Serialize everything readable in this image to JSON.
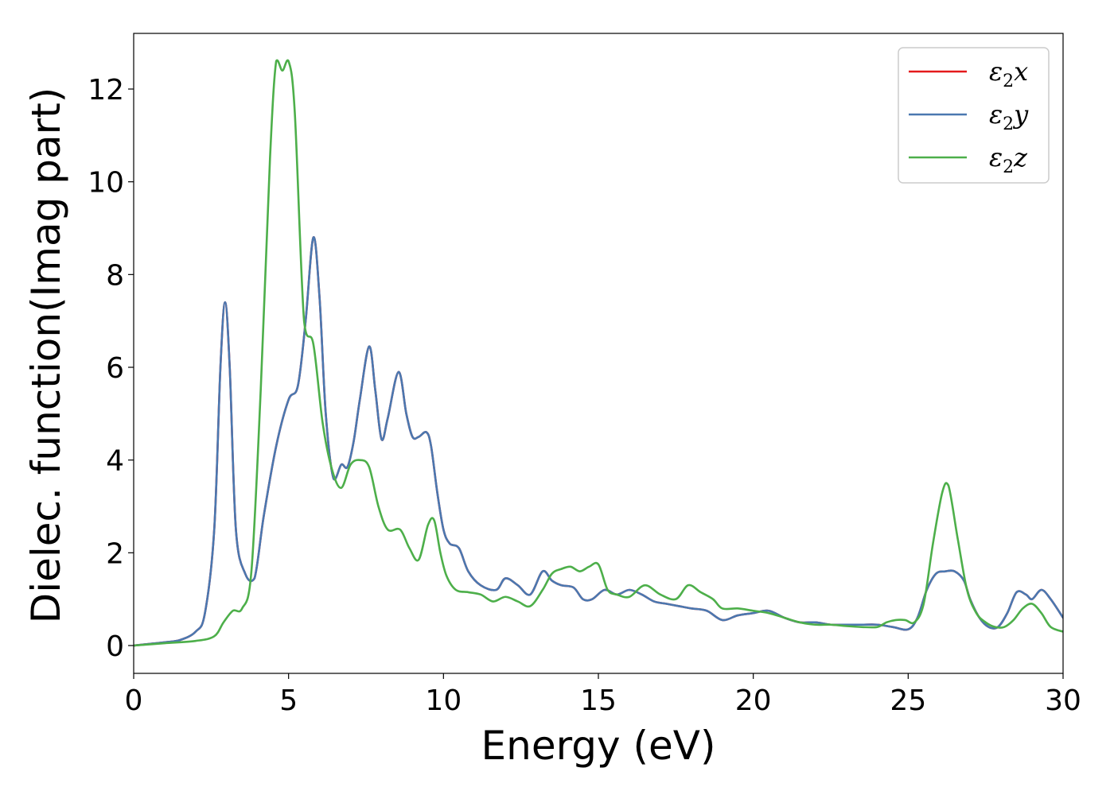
{
  "chart_data": {
    "type": "line",
    "xlabel": "Energy (eV)",
    "ylabel": "Dielec. function(Imag part)",
    "xlim": [
      0,
      30
    ],
    "ylim": [
      -0.6,
      13.2
    ],
    "xticks": [
      0,
      5,
      10,
      15,
      20,
      25,
      30
    ],
    "yticks": [
      0,
      2,
      4,
      6,
      8,
      10,
      12
    ],
    "grid": false,
    "legend": {
      "placement": "top-right"
    },
    "series": [
      {
        "name": "ε₂x",
        "legend_main": "ε",
        "legend_sub": "2",
        "legend_var": "x",
        "color": "#e41a1c",
        "x": [
          0,
          1,
          1.5,
          2,
          2.3,
          2.6,
          2.8,
          2.95,
          3.1,
          3.3,
          3.6,
          3.9,
          4.2,
          4.6,
          5.0,
          5.3,
          5.55,
          5.8,
          6.0,
          6.2,
          6.45,
          6.7,
          6.9,
          7.1,
          7.3,
          7.6,
          7.8,
          8.0,
          8.2,
          8.55,
          8.8,
          9.0,
          9.2,
          9.45,
          9.6,
          9.8,
          10.0,
          10.2,
          10.5,
          10.8,
          11.2,
          11.7,
          12.0,
          12.4,
          12.8,
          13.2,
          13.5,
          13.8,
          14.2,
          14.5,
          14.8,
          15.2,
          15.6,
          16.0,
          16.4,
          16.8,
          17.2,
          17.6,
          18.0,
          18.5,
          19.0,
          19.5,
          20.0,
          20.5,
          21.0,
          21.5,
          22.0,
          22.5,
          23.0,
          23.5,
          24.0,
          24.5,
          25.0,
          25.3,
          25.6,
          25.9,
          26.2,
          26.5,
          26.8,
          27.0,
          27.3,
          27.6,
          27.9,
          28.2,
          28.5,
          28.8,
          29.0,
          29.3,
          29.6,
          30.0
        ],
        "values": [
          0,
          0.07,
          0.12,
          0.3,
          0.7,
          2.5,
          6.0,
          7.4,
          6.0,
          2.5,
          1.55,
          1.45,
          2.8,
          4.3,
          5.3,
          5.6,
          7.0,
          8.8,
          7.5,
          5.0,
          3.6,
          3.9,
          3.85,
          4.4,
          5.3,
          6.45,
          5.5,
          4.45,
          4.9,
          5.9,
          5.0,
          4.5,
          4.5,
          4.6,
          4.3,
          3.3,
          2.5,
          2.2,
          2.1,
          1.6,
          1.3,
          1.2,
          1.45,
          1.3,
          1.1,
          1.6,
          1.4,
          1.3,
          1.25,
          1.0,
          1.0,
          1.2,
          1.1,
          1.2,
          1.1,
          0.95,
          0.9,
          0.85,
          0.8,
          0.75,
          0.55,
          0.65,
          0.7,
          0.75,
          0.6,
          0.5,
          0.5,
          0.45,
          0.45,
          0.45,
          0.45,
          0.4,
          0.35,
          0.6,
          1.2,
          1.55,
          1.6,
          1.6,
          1.4,
          1.0,
          0.6,
          0.4,
          0.4,
          0.7,
          1.15,
          1.1,
          1.0,
          1.2,
          1.0,
          0.6
        ]
      },
      {
        "name": "ε₂y",
        "legend_main": "ε",
        "legend_sub": "2",
        "legend_var": "y",
        "color": "#4a78b0",
        "x": [
          0,
          1,
          1.5,
          2,
          2.3,
          2.6,
          2.8,
          2.95,
          3.1,
          3.3,
          3.6,
          3.9,
          4.2,
          4.6,
          5.0,
          5.3,
          5.55,
          5.8,
          6.0,
          6.2,
          6.45,
          6.7,
          6.9,
          7.1,
          7.3,
          7.6,
          7.8,
          8.0,
          8.2,
          8.55,
          8.8,
          9.0,
          9.2,
          9.45,
          9.6,
          9.8,
          10.0,
          10.2,
          10.5,
          10.8,
          11.2,
          11.7,
          12.0,
          12.4,
          12.8,
          13.2,
          13.5,
          13.8,
          14.2,
          14.5,
          14.8,
          15.2,
          15.6,
          16.0,
          16.4,
          16.8,
          17.2,
          17.6,
          18.0,
          18.5,
          19.0,
          19.5,
          20.0,
          20.5,
          21.0,
          21.5,
          22.0,
          22.5,
          23.0,
          23.5,
          24.0,
          24.5,
          25.0,
          25.3,
          25.6,
          25.9,
          26.2,
          26.5,
          26.8,
          27.0,
          27.3,
          27.6,
          27.9,
          28.2,
          28.5,
          28.8,
          29.0,
          29.3,
          29.6,
          30.0
        ],
        "values": [
          0,
          0.07,
          0.12,
          0.3,
          0.7,
          2.5,
          6.0,
          7.4,
          6.0,
          2.5,
          1.55,
          1.45,
          2.8,
          4.3,
          5.3,
          5.6,
          7.0,
          8.8,
          7.5,
          5.0,
          3.6,
          3.9,
          3.85,
          4.4,
          5.3,
          6.45,
          5.5,
          4.45,
          4.9,
          5.9,
          5.0,
          4.5,
          4.5,
          4.6,
          4.3,
          3.3,
          2.5,
          2.2,
          2.1,
          1.6,
          1.3,
          1.2,
          1.45,
          1.3,
          1.1,
          1.6,
          1.4,
          1.3,
          1.25,
          1.0,
          1.0,
          1.2,
          1.1,
          1.2,
          1.1,
          0.95,
          0.9,
          0.85,
          0.8,
          0.75,
          0.55,
          0.65,
          0.7,
          0.75,
          0.6,
          0.5,
          0.5,
          0.45,
          0.45,
          0.45,
          0.45,
          0.4,
          0.35,
          0.6,
          1.2,
          1.55,
          1.6,
          1.6,
          1.4,
          1.0,
          0.6,
          0.4,
          0.4,
          0.7,
          1.15,
          1.1,
          1.0,
          1.2,
          1.0,
          0.6
        ]
      },
      {
        "name": "ε₂z",
        "legend_main": "ε",
        "legend_sub": "2",
        "legend_var": "z",
        "color": "#4daf4a",
        "x": [
          0,
          1,
          2,
          2.6,
          2.9,
          3.2,
          3.5,
          3.8,
          4.1,
          4.4,
          4.6,
          4.8,
          5.0,
          5.2,
          5.5,
          5.8,
          6.1,
          6.4,
          6.7,
          7.0,
          7.3,
          7.6,
          7.9,
          8.2,
          8.6,
          8.9,
          9.2,
          9.5,
          9.7,
          9.9,
          10.1,
          10.4,
          10.8,
          11.2,
          11.6,
          12.0,
          12.4,
          12.8,
          13.2,
          13.5,
          13.8,
          14.1,
          14.4,
          14.7,
          15.0,
          15.3,
          15.6,
          16.0,
          16.5,
          17.0,
          17.5,
          17.9,
          18.3,
          18.7,
          19.0,
          19.5,
          20.0,
          20.5,
          21.0,
          21.5,
          22.0,
          22.5,
          23.0,
          23.5,
          24.0,
          24.3,
          24.6,
          24.9,
          25.2,
          25.5,
          25.8,
          26.1,
          26.3,
          26.6,
          26.9,
          27.2,
          27.5,
          27.8,
          28.1,
          28.4,
          28.7,
          29.0,
          29.3,
          29.6,
          30.0
        ],
        "values": [
          0,
          0.05,
          0.1,
          0.2,
          0.5,
          0.75,
          0.8,
          1.6,
          5.5,
          10.5,
          12.6,
          12.4,
          12.6,
          11.5,
          7.0,
          6.5,
          4.8,
          3.8,
          3.4,
          3.9,
          4.0,
          3.85,
          3.0,
          2.5,
          2.5,
          2.1,
          1.85,
          2.6,
          2.7,
          2.0,
          1.5,
          1.2,
          1.15,
          1.1,
          0.95,
          1.05,
          0.95,
          0.85,
          1.2,
          1.55,
          1.65,
          1.7,
          1.6,
          1.7,
          1.75,
          1.2,
          1.1,
          1.05,
          1.3,
          1.1,
          1.0,
          1.3,
          1.15,
          1.0,
          0.8,
          0.8,
          0.75,
          0.7,
          0.6,
          0.5,
          0.45,
          0.45,
          0.42,
          0.4,
          0.4,
          0.5,
          0.55,
          0.55,
          0.5,
          0.9,
          2.2,
          3.3,
          3.45,
          2.3,
          1.2,
          0.7,
          0.5,
          0.4,
          0.4,
          0.55,
          0.8,
          0.9,
          0.7,
          0.4,
          0.3
        ]
      }
    ]
  }
}
